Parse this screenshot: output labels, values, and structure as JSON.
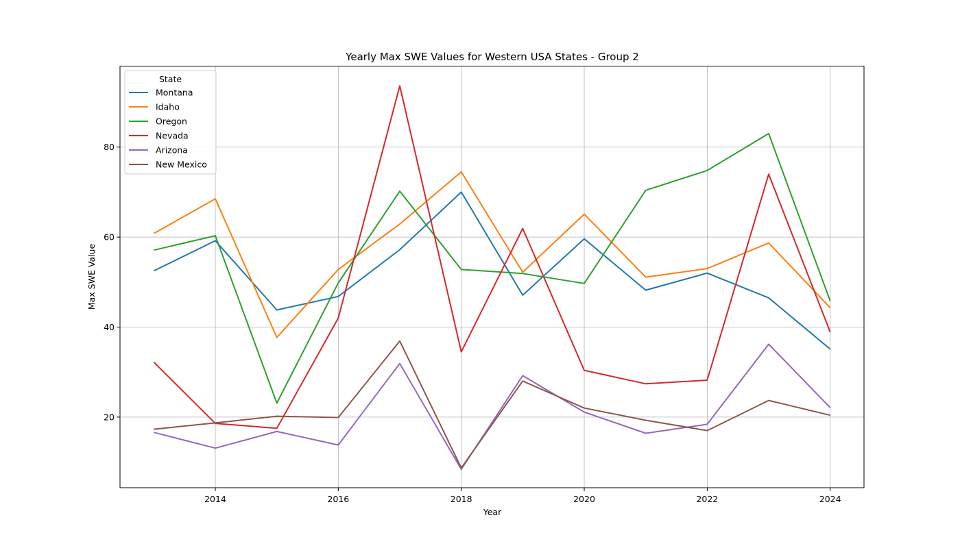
{
  "chart_data": {
    "type": "line",
    "title": "Yearly Max SWE Values for Western USA States - Group 2",
    "xlabel": "Year",
    "ylabel": "Max SWE Value",
    "x": [
      2013,
      2014,
      2015,
      2016,
      2017,
      2018,
      2019,
      2020,
      2021,
      2022,
      2023,
      2024
    ],
    "xlim": [
      2012.45,
      2024.55
    ],
    "ylim": [
      4.3,
      98.0
    ],
    "xticks": [
      2014,
      2016,
      2018,
      2020,
      2022,
      2024
    ],
    "yticks": [
      20,
      40,
      60,
      80
    ],
    "grid": true,
    "legend": {
      "title": "State",
      "position": "top-left"
    },
    "series": [
      {
        "name": "Montana",
        "color": "#1f77b4",
        "values": [
          52.5,
          59.2,
          43.8,
          46.8,
          57.2,
          70.0,
          47.1,
          59.6,
          48.2,
          52.0,
          46.5,
          35.1
        ]
      },
      {
        "name": "Idaho",
        "color": "#ff7f0e",
        "values": [
          60.8,
          68.5,
          37.7,
          52.8,
          62.9,
          74.5,
          52.2,
          65.1,
          51.1,
          53.0,
          58.7,
          44.3
        ]
      },
      {
        "name": "Oregon",
        "color": "#2ca02c",
        "values": [
          57.1,
          60.3,
          23.1,
          49.8,
          70.2,
          52.8,
          51.9,
          49.7,
          70.4,
          74.8,
          83.0,
          45.8
        ]
      },
      {
        "name": "Nevada",
        "color": "#d62728",
        "values": [
          32.2,
          18.6,
          17.5,
          42.0,
          93.6,
          34.5,
          61.9,
          30.4,
          27.4,
          28.2,
          74.0,
          38.9
        ]
      },
      {
        "name": "Arizona",
        "color": "#9467bd",
        "values": [
          16.6,
          13.1,
          16.8,
          13.8,
          31.9,
          8.4,
          29.2,
          21.1,
          16.4,
          18.4,
          36.2,
          22.1
        ]
      },
      {
        "name": "New Mexico",
        "color": "#8c564b",
        "values": [
          17.3,
          18.7,
          20.2,
          19.9,
          36.9,
          8.7,
          28.0,
          22.0,
          19.3,
          17.0,
          23.7,
          20.4
        ]
      }
    ]
  }
}
